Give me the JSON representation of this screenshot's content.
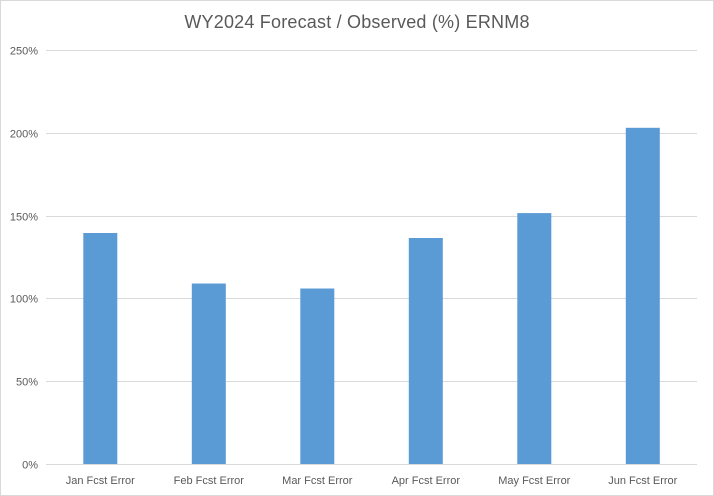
{
  "chart_data": {
    "type": "bar",
    "title": "WY2024 Forecast / Observed (%) ERNM8",
    "categories": [
      "Jan Fcst Error",
      "Feb Fcst Error",
      "Mar Fcst Error",
      "Apr Fcst Error",
      "May Fcst Error",
      "Jun Fcst Error"
    ],
    "series": [
      {
        "values": [
          139.5,
          109,
          106,
          136.5,
          151.5,
          203
        ]
      }
    ],
    "ylim": [
      0,
      250
    ],
    "yticks": [
      0,
      50,
      100,
      150,
      200,
      250
    ],
    "ytick_labels": [
      "0%",
      "50%",
      "100%",
      "150%",
      "200%",
      "250%"
    ],
    "grid": true,
    "legend": "none",
    "bar_color": "#5b9bd5",
    "grid_color": "#d9d9d9"
  }
}
